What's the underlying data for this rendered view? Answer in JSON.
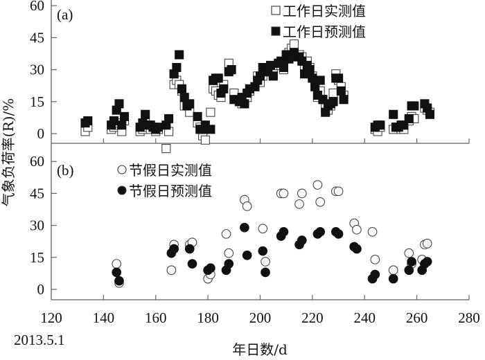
{
  "chart_data": [
    {
      "type": "scatter",
      "panel_label": "(a)",
      "xlim": [
        120,
        280
      ],
      "ylim": [
        -5,
        60
      ],
      "yticks": [
        "0",
        "15",
        "30",
        "45",
        "60"
      ],
      "legend_placement": "top-right",
      "series": [
        {
          "name": "工作日实测值",
          "marker": "open-square",
          "x": [
            133,
            134,
            143,
            144,
            145,
            146,
            147,
            148,
            154,
            155,
            156,
            157,
            158,
            159,
            160,
            161,
            164,
            165,
            167,
            168,
            169,
            170,
            171,
            172,
            173,
            176,
            177,
            178,
            179,
            181,
            182,
            183,
            184,
            185,
            186,
            188,
            189,
            190,
            192,
            193,
            194,
            195,
            196,
            198,
            199,
            200,
            201,
            202,
            203,
            204,
            205,
            207,
            208,
            209,
            210,
            211,
            212,
            213,
            215,
            216,
            217,
            218,
            219,
            220,
            221,
            222,
            223,
            224,
            225,
            226,
            227,
            228,
            229,
            230,
            231,
            232,
            244,
            245,
            246,
            251,
            252,
            253,
            254,
            255,
            257,
            258,
            259,
            263,
            264,
            265
          ],
          "y": [
            1,
            3,
            2,
            3,
            4,
            5,
            1,
            6,
            1,
            2,
            5,
            3,
            2,
            3,
            1,
            2,
            -7,
            1,
            23,
            25,
            23,
            20,
            13,
            13,
            10,
            5,
            3,
            -1,
            -3,
            10,
            21,
            20,
            18,
            17,
            23,
            33,
            30,
            19,
            16,
            14,
            15,
            17,
            20,
            22,
            27,
            24,
            27,
            29,
            30,
            31,
            28,
            33,
            32,
            30,
            36,
            38,
            40,
            42,
            37,
            36,
            30,
            34,
            31,
            27,
            24,
            17,
            20,
            16,
            12,
            11,
            13,
            19,
            28,
            25,
            22,
            18,
            2,
            1,
            3,
            2,
            3,
            3,
            2,
            2,
            6,
            8,
            7,
            12,
            11,
            10
          ]
        },
        {
          "name": "工作日预测值",
          "marker": "filled-square",
          "x": [
            133,
            134,
            143,
            144,
            145,
            146,
            147,
            148,
            154,
            155,
            156,
            157,
            158,
            159,
            160,
            161,
            164,
            165,
            167,
            168,
            169,
            170,
            171,
            172,
            173,
            176,
            177,
            178,
            179,
            181,
            182,
            183,
            184,
            185,
            186,
            188,
            189,
            190,
            192,
            193,
            194,
            195,
            196,
            198,
            199,
            200,
            201,
            202,
            203,
            204,
            205,
            207,
            208,
            209,
            210,
            211,
            212,
            213,
            215,
            216,
            217,
            218,
            219,
            220,
            221,
            222,
            223,
            224,
            225,
            226,
            227,
            228,
            229,
            230,
            231,
            232,
            244,
            245,
            246,
            251,
            252,
            253,
            254,
            255,
            257,
            258,
            259,
            263,
            264,
            265
          ],
          "y": [
            5,
            6,
            4,
            6,
            11,
            14,
            4,
            8,
            3,
            5,
            9,
            4,
            4,
            3,
            2,
            3,
            4,
            7,
            28,
            31,
            37,
            21,
            17,
            13,
            14,
            8,
            2,
            2,
            4,
            2,
            25,
            26,
            26,
            19,
            21,
            29,
            30,
            16,
            15,
            17,
            14,
            19,
            21,
            22,
            25,
            27,
            31,
            29,
            30,
            32,
            27,
            33,
            34,
            31,
            37,
            35,
            36,
            38,
            36,
            34,
            28,
            32,
            30,
            26,
            22,
            18,
            25,
            16,
            10,
            13,
            14,
            15,
            26,
            26,
            20,
            16,
            3,
            4,
            4,
            9,
            3,
            3,
            4,
            4,
            7,
            13,
            13,
            14,
            12,
            9
          ]
        }
      ]
    },
    {
      "type": "scatter",
      "panel_label": "(b)",
      "xlim": [
        120,
        280
      ],
      "ylim": [
        -5,
        60
      ],
      "yticks": [
        "0",
        "15",
        "30",
        "45",
        "60"
      ],
      "xticks": [
        "120",
        "140",
        "160",
        "180",
        "200",
        "220",
        "240",
        "260",
        "280"
      ],
      "xlabel": "年日数/d",
      "ylabel": "气象负荷率(R)/%",
      "x_origin_note": "2013.5.1",
      "legend_placement": "top-left",
      "series": [
        {
          "name": "节假日实测值",
          "marker": "open-circle",
          "x": [
            145,
            146,
            166,
            167,
            173,
            174,
            180,
            181,
            187,
            188,
            194,
            195,
            201,
            202,
            208,
            209,
            215,
            216,
            222,
            223,
            229,
            230,
            236,
            237,
            243,
            244,
            251,
            257,
            258,
            262,
            263,
            264
          ],
          "y": [
            12,
            3,
            9,
            21,
            21,
            22,
            5,
            7,
            26,
            17,
            42,
            39,
            28.5,
            13,
            45,
            45,
            40,
            45,
            49,
            41,
            46,
            46,
            31,
            28,
            27,
            14,
            9,
            17,
            12,
            14,
            21,
            21.5
          ]
        },
        {
          "name": "节假日预测值",
          "marker": "filled-circle",
          "x": [
            145,
            146,
            166,
            167,
            173,
            174,
            180,
            181,
            187,
            188,
            194,
            195,
            201,
            202,
            208,
            209,
            215,
            216,
            222,
            223,
            229,
            230,
            236,
            237,
            243,
            244,
            251,
            257,
            258,
            262,
            263,
            264
          ],
          "y": [
            8,
            4,
            17,
            19,
            19,
            12,
            9,
            10,
            9,
            12,
            29,
            16,
            18,
            8,
            25,
            27,
            21,
            23,
            26,
            27,
            27,
            26,
            20,
            19,
            5,
            7,
            5,
            9,
            13,
            9,
            12,
            13
          ]
        }
      ]
    }
  ]
}
